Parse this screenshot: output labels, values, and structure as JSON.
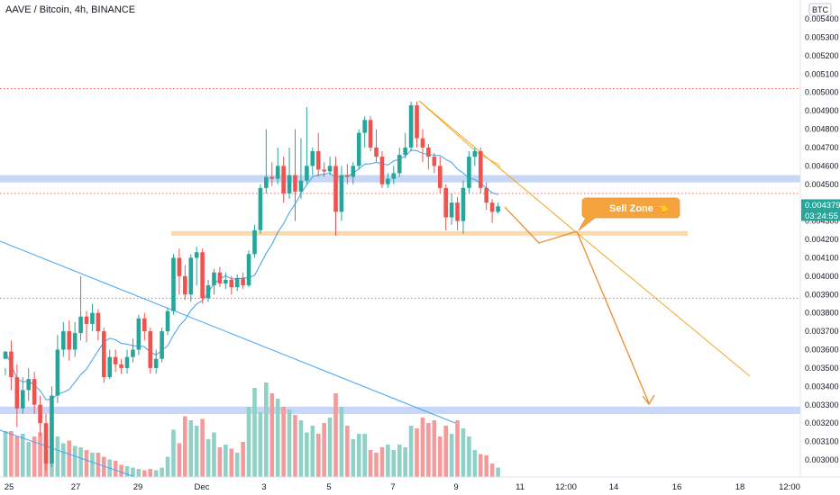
{
  "header": {
    "title": "AAVE / Bitcoin, 4h, BINANCE",
    "currency": "BTC"
  },
  "badges": {
    "price": "0.004379",
    "countdown": "03:24:55"
  },
  "annotation": {
    "label": "Sell Zone 👈"
  },
  "colors": {
    "up": "#26a69a",
    "down": "#ef5350",
    "up_volume": "#8fd1c7",
    "down_volume": "#f49a9a",
    "blue_zone": "#c7d7f5",
    "orange_zone": "#fcd9a8",
    "orange_line": "#f5a623",
    "arrow": "#e8953a",
    "blue_line": "#42a5f5",
    "ma_line": "#4fa8e8",
    "red_dotted": "#ef5350",
    "price_badge": "#26a69a"
  },
  "chart_data": {
    "type": "candlestick",
    "title": "AAVE / Bitcoin, 4h, BINANCE",
    "y_axis": {
      "ticks": [
        "0.005400",
        "0.005300",
        "0.005200",
        "0.005100",
        "0.005000",
        "0.004900",
        "0.004800",
        "0.004700",
        "0.004600",
        "0.004500",
        "0.004400",
        "0.004300",
        "0.004200",
        "0.004100",
        "0.004000",
        "0.003900",
        "0.003800",
        "0.003700",
        "0.003600",
        "0.003500",
        "0.003400",
        "0.003300",
        "0.003200",
        "0.003100",
        "0.003000"
      ],
      "range": [
        0.00295,
        0.00545
      ]
    },
    "x_axis": {
      "ticks": [
        "25",
        "27",
        "29",
        "Dec",
        "3",
        "5",
        "7",
        "9",
        "11",
        "12:00",
        "14",
        "16",
        "18",
        "12:00"
      ]
    },
    "zones": {
      "blue_upper": [
        0.00451,
        0.00455
      ],
      "blue_lower": [
        0.00325,
        0.00329
      ],
      "orange_support": [
        0.00423,
        0.00424
      ]
    },
    "dotted_levels": [
      0.00502,
      0.00445,
      0.00388
    ],
    "last_price": 0.004379,
    "candles": [
      [
        0.00355,
        0.00359,
        0.0035,
        0.00346
      ],
      [
        0.00359,
        0.00345,
        0.00365,
        0.00338
      ],
      [
        0.00345,
        0.00328,
        0.00352,
        0.00318
      ],
      [
        0.00328,
        0.00338,
        0.00345,
        0.00325
      ],
      [
        0.00338,
        0.00344,
        0.0035,
        0.00332
      ],
      [
        0.00344,
        0.0033,
        0.00348,
        0.00325
      ],
      [
        0.0033,
        0.0032,
        0.00335,
        0.00313
      ],
      [
        0.0032,
        0.00298,
        0.00325,
        0.00294
      ],
      [
        0.00298,
        0.00335,
        0.0034,
        0.00296
      ],
      [
        0.00335,
        0.0036,
        0.00368,
        0.00331
      ],
      [
        0.0036,
        0.0037,
        0.00375,
        0.00356
      ],
      [
        0.0037,
        0.0036,
        0.00376,
        0.00354
      ],
      [
        0.0036,
        0.00369,
        0.00375,
        0.00356
      ],
      [
        0.00369,
        0.00378,
        0.004,
        0.00365
      ],
      [
        0.00378,
        0.00374,
        0.00381,
        0.00364
      ],
      [
        0.00374,
        0.0038,
        0.00385,
        0.0037
      ],
      [
        0.0038,
        0.0037,
        0.00382,
        0.00365
      ],
      [
        0.0037,
        0.00345,
        0.00372,
        0.00342
      ],
      [
        0.00345,
        0.00356,
        0.0036,
        0.00344
      ],
      [
        0.00356,
        0.00352,
        0.0036,
        0.00348
      ],
      [
        0.00352,
        0.0035,
        0.00355,
        0.00347
      ],
      [
        0.0035,
        0.00356,
        0.0036,
        0.00347
      ],
      [
        0.00356,
        0.0036,
        0.00366,
        0.00353
      ],
      [
        0.0036,
        0.00377,
        0.00379,
        0.00357
      ],
      [
        0.00377,
        0.0037,
        0.0038,
        0.00365
      ],
      [
        0.0037,
        0.0035,
        0.00372,
        0.00347
      ],
      [
        0.0035,
        0.00355,
        0.0036,
        0.00347
      ],
      [
        0.00355,
        0.0037,
        0.00372,
        0.00353
      ],
      [
        0.0037,
        0.00381,
        0.00383,
        0.00368
      ],
      [
        0.00381,
        0.0041,
        0.00412,
        0.00379
      ],
      [
        0.0041,
        0.004,
        0.00415,
        0.0039
      ],
      [
        0.004,
        0.0039,
        0.00406,
        0.00387
      ],
      [
        0.0039,
        0.0041,
        0.00412,
        0.00386
      ],
      [
        0.0041,
        0.00413,
        0.00416,
        0.00395
      ],
      [
        0.00413,
        0.00388,
        0.00415,
        0.00385
      ],
      [
        0.00388,
        0.00395,
        0.00398,
        0.00386
      ],
      [
        0.00395,
        0.00402,
        0.00404,
        0.0039
      ],
      [
        0.00402,
        0.00396,
        0.00405,
        0.00394
      ],
      [
        0.00396,
        0.00398,
        0.00402,
        0.00393
      ],
      [
        0.00398,
        0.00394,
        0.004,
        0.0039
      ],
      [
        0.00394,
        0.00399,
        0.00401,
        0.00392
      ],
      [
        0.00399,
        0.00395,
        0.00402,
        0.00393
      ],
      [
        0.00395,
        0.00412,
        0.00414,
        0.00394
      ],
      [
        0.00412,
        0.00425,
        0.00428,
        0.0041
      ],
      [
        0.00425,
        0.00448,
        0.0045,
        0.00423
      ],
      [
        0.00448,
        0.00454,
        0.0048,
        0.00445
      ],
      [
        0.00454,
        0.00453,
        0.00462,
        0.00449
      ],
      [
        0.00453,
        0.0046,
        0.0047,
        0.0045
      ],
      [
        0.0046,
        0.00445,
        0.00465,
        0.0044
      ],
      [
        0.00445,
        0.00455,
        0.0047,
        0.00442
      ],
      [
        0.00455,
        0.00446,
        0.0048,
        0.0043
      ],
      [
        0.00446,
        0.00452,
        0.00475,
        0.00442
      ],
      [
        0.00452,
        0.0046,
        0.00492,
        0.0045
      ],
      [
        0.0046,
        0.00468,
        0.0047,
        0.00455
      ],
      [
        0.00468,
        0.00458,
        0.00478,
        0.00454
      ],
      [
        0.00458,
        0.00457,
        0.00462,
        0.00454
      ],
      [
        0.00457,
        0.0046,
        0.00465,
        0.00455
      ],
      [
        0.0046,
        0.00435,
        0.00465,
        0.00422
      ],
      [
        0.00435,
        0.00455,
        0.0046,
        0.0043
      ],
      [
        0.00455,
        0.00454,
        0.00461,
        0.0045
      ],
      [
        0.00454,
        0.0046,
        0.00462,
        0.0045
      ],
      [
        0.0046,
        0.00478,
        0.0048,
        0.00458
      ],
      [
        0.00478,
        0.00485,
        0.00487,
        0.0047
      ],
      [
        0.00485,
        0.0047,
        0.00487,
        0.00468
      ],
      [
        0.0047,
        0.00465,
        0.0048,
        0.00462
      ],
      [
        0.00465,
        0.0045,
        0.00468,
        0.00448
      ],
      [
        0.0045,
        0.00453,
        0.00456,
        0.00448
      ],
      [
        0.00453,
        0.00456,
        0.0046,
        0.0045
      ],
      [
        0.00456,
        0.00466,
        0.0047,
        0.00454
      ],
      [
        0.00466,
        0.0047,
        0.00478,
        0.00464
      ],
      [
        0.0047,
        0.00493,
        0.00495,
        0.00468
      ],
      [
        0.00493,
        0.00475,
        0.00495,
        0.0047
      ],
      [
        0.00475,
        0.0047,
        0.0048,
        0.00462
      ],
      [
        0.0047,
        0.00465,
        0.00472,
        0.00458
      ],
      [
        0.00465,
        0.0046,
        0.00467,
        0.00456
      ],
      [
        0.0046,
        0.00448,
        0.00465,
        0.00445
      ],
      [
        0.00448,
        0.00432,
        0.0045,
        0.00425
      ],
      [
        0.00432,
        0.0044,
        0.00445,
        0.00428
      ],
      [
        0.0044,
        0.0043,
        0.00443,
        0.00425
      ],
      [
        0.0043,
        0.00448,
        0.00452,
        0.00423
      ],
      [
        0.00448,
        0.00465,
        0.00468,
        0.00445
      ],
      [
        0.00465,
        0.00468,
        0.0047,
        0.0046
      ],
      [
        0.00468,
        0.00448,
        0.0047,
        0.00445
      ],
      [
        0.00448,
        0.0044,
        0.00451,
        0.00436
      ],
      [
        0.0044,
        0.00435,
        0.00442,
        0.00429
      ],
      [
        0.00435,
        0.00438,
        0.0044,
        0.00434
      ]
    ],
    "volumes": [
      0.34,
      0.34,
      0.3,
      0.32,
      0.26,
      0.3,
      0.33,
      0.28,
      0.45,
      0.3,
      0.25,
      0.27,
      0.23,
      0.22,
      0.2,
      0.18,
      0.18,
      0.15,
      0.13,
      0.12,
      0.09,
      0.08,
      0.07,
      0.06,
      0.05,
      0.06,
      0.05,
      0.07,
      0.15,
      0.35,
      0.25,
      0.45,
      0.42,
      0.38,
      0.43,
      0.28,
      0.33,
      0.22,
      0.24,
      0.21,
      0.18,
      0.26,
      0.52,
      0.66,
      0.48,
      0.7,
      0.62,
      0.58,
      0.52,
      0.5,
      0.46,
      0.42,
      0.33,
      0.38,
      0.32,
      0.4,
      0.44,
      0.62,
      0.52,
      0.38,
      0.28,
      0.32,
      0.32,
      0.2,
      0.18,
      0.22,
      0.24,
      0.2,
      0.24,
      0.22,
      0.38,
      0.36,
      0.44,
      0.4,
      0.42,
      0.3,
      0.38,
      0.32,
      0.42,
      0.36,
      0.3,
      0.2,
      0.17,
      0.16,
      0.1,
      0.07
    ]
  }
}
